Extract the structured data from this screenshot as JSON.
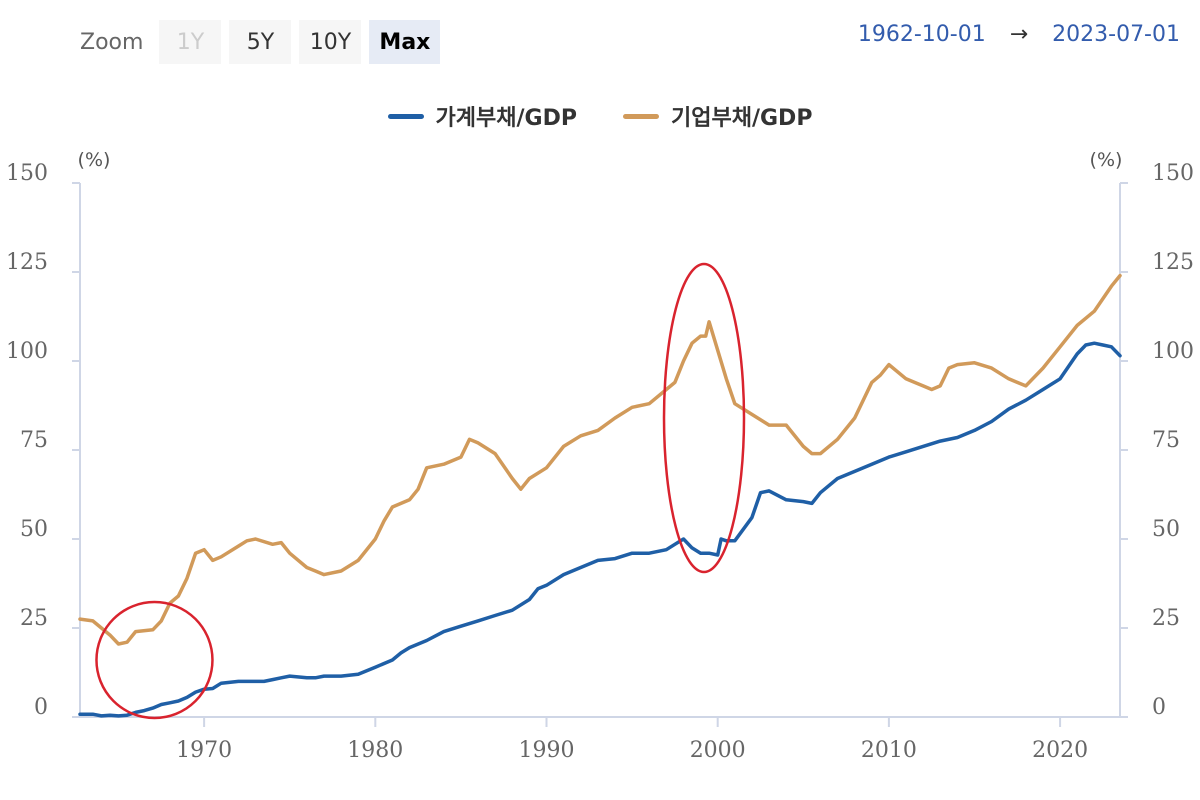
{
  "zoom": {
    "label": "Zoom",
    "buttons": [
      {
        "label": "1Y",
        "state": "disabled"
      },
      {
        "label": "5Y",
        "state": "normal"
      },
      {
        "label": "10Y",
        "state": "normal"
      },
      {
        "label": "Max",
        "state": "active"
      }
    ]
  },
  "range": {
    "from": "1962-10-01",
    "arrow": "→",
    "to": "2023-07-01"
  },
  "colors": {
    "household": "#1f5fa6",
    "corporate": "#d19a5a",
    "annotation": "#d9232e",
    "axis": "#cfd6e6",
    "grid": "#e6e6e6"
  },
  "chart_data": {
    "type": "line",
    "title": "",
    "xlabel": "",
    "ylabel_left": "(%)",
    "ylabel_right": "(%)",
    "xlim": [
      1962.75,
      2023.5
    ],
    "ylim": [
      0,
      150
    ],
    "yticks": [
      "0",
      "25",
      "50",
      "75",
      "100",
      "125",
      "150"
    ],
    "xticks": [
      "1970",
      "1980",
      "1990",
      "2000",
      "2010",
      "2020"
    ],
    "legend_position": "top-center",
    "series": [
      {
        "name": "가계부채/GDP",
        "color": "#1f5fa6",
        "x": [
          1962.75,
          1963.5,
          1964,
          1964.5,
          1965,
          1965.5,
          1966,
          1966.5,
          1967,
          1967.5,
          1968,
          1968.5,
          1969,
          1969.5,
          1970,
          1970.5,
          1971,
          1972,
          1973,
          1973.5,
          1974,
          1974.5,
          1975,
          1976,
          1976.5,
          1977,
          1978,
          1979,
          1980,
          1981,
          1981.5,
          1982,
          1983,
          1984,
          1985,
          1986,
          1987,
          1988,
          1989,
          1989.5,
          1990,
          1991,
          1992,
          1993,
          1994,
          1995,
          1996,
          1997,
          1997.5,
          1998,
          1998.5,
          1999,
          1999.5,
          2000,
          2000.2,
          2000.5,
          2001,
          2002,
          2002.5,
          2003,
          2004,
          2005,
          2005.5,
          2006,
          2007,
          2008,
          2009,
          2010,
          2011,
          2012,
          2013,
          2014,
          2015,
          2016,
          2017,
          2018,
          2019,
          2020,
          2021,
          2021.5,
          2022,
          2022.5,
          2023,
          2023.5
        ],
        "values": [
          0.8,
          0.8,
          0.3,
          0.5,
          0.3,
          0.5,
          1.3,
          1.8,
          2.5,
          3.5,
          4,
          4.5,
          5.5,
          7,
          7.8,
          8,
          9.5,
          10,
          10,
          10,
          10.5,
          11,
          11.5,
          11,
          11,
          11.5,
          11.5,
          12,
          14,
          16,
          18,
          19.5,
          21.5,
          24,
          25.5,
          27,
          28.5,
          30,
          33,
          36,
          37,
          40,
          42,
          44,
          44.5,
          46,
          46,
          47,
          48.5,
          50,
          47.5,
          46,
          46,
          45.5,
          50,
          49.5,
          49.5,
          56,
          63,
          63.5,
          61,
          60.5,
          60,
          63,
          67,
          69,
          71,
          73,
          74.5,
          76,
          77.5,
          78.5,
          80.5,
          83,
          86.5,
          89,
          92,
          95,
          102,
          104.5,
          105,
          104.5,
          104,
          101.5
        ]
      },
      {
        "name": "기업부채/GDP",
        "color": "#d19a5a",
        "x": [
          1962.75,
          1963.5,
          1964,
          1964.5,
          1965,
          1965.5,
          1966,
          1967,
          1967.5,
          1968,
          1968.5,
          1969,
          1969.5,
          1970,
          1970.5,
          1971,
          1972,
          1972.5,
          1973,
          1974,
          1974.5,
          1975,
          1976,
          1976.5,
          1977,
          1978,
          1979,
          1980,
          1980.5,
          1981,
          1982,
          1982.5,
          1983,
          1984,
          1985,
          1985.5,
          1986,
          1987,
          1988,
          1988.5,
          1989,
          1990,
          1991,
          1992,
          1993,
          1994,
          1995,
          1996,
          1997,
          1997.5,
          1998,
          1998.5,
          1999,
          1999.3,
          1999.5,
          2000,
          2000.5,
          2001,
          2002,
          2003,
          2004,
          2005,
          2005.5,
          2006,
          2007,
          2008,
          2009,
          2009.5,
          2010,
          2011,
          2012,
          2012.5,
          2013,
          2013.5,
          2014,
          2015,
          2016,
          2017,
          2017.5,
          2018,
          2019,
          2020,
          2021,
          2022,
          2023,
          2023.5
        ],
        "values": [
          27.5,
          27,
          25,
          23,
          20.5,
          21,
          24,
          24.5,
          27,
          32,
          34,
          39,
          46,
          47,
          44,
          45,
          48,
          49.5,
          50,
          48.5,
          49,
          46,
          42,
          41,
          40,
          41,
          44,
          50,
          55,
          59,
          61,
          64,
          70,
          71,
          73,
          78,
          77,
          74,
          67,
          64,
          67,
          70,
          76,
          79,
          80.5,
          84,
          87,
          88,
          92,
          94,
          100,
          105,
          107,
          107,
          111,
          103,
          95,
          88,
          85,
          82,
          82,
          76,
          74,
          74,
          78,
          84,
          94,
          96,
          99,
          95,
          93,
          92,
          93,
          98,
          99,
          99.5,
          98,
          95,
          94,
          93,
          98,
          104,
          110,
          114,
          121,
          124
        ]
      }
    ],
    "annotations": [
      {
        "shape": "circle",
        "center": [
          1967.1,
          16
        ],
        "note": "red circle highlight"
      },
      {
        "shape": "ellipse",
        "center": [
          1999.2,
          84
        ],
        "note": "red ellipse highlight"
      }
    ]
  }
}
